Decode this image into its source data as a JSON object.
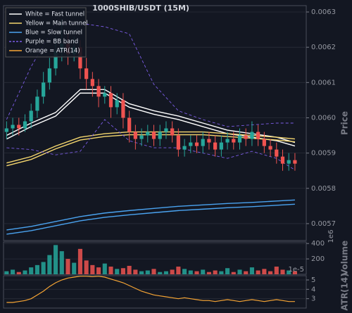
{
  "chart_data": [
    {
      "type": "candlestick",
      "title": "1000SHIB/USDT (15M)",
      "ylabel": "Price",
      "up_color": "#26a69a",
      "down_color": "#ef5350",
      "xlim": [
        -0.5,
        48.5
      ],
      "ylim": [
        0.005652,
        0.006318
      ],
      "yticks": [
        0.0057,
        0.0058,
        0.0059,
        {
          "value": 0.006,
          "label": "0.0060"
        },
        0.0061,
        0.0062,
        0.0063
      ],
      "x": [
        0,
        1,
        2,
        3,
        4,
        5,
        6,
        7,
        8,
        9,
        10,
        11,
        12,
        13,
        14,
        15,
        16,
        17,
        18,
        19,
        20,
        21,
        22,
        23,
        24,
        25,
        26,
        27,
        28,
        29,
        30,
        31,
        32,
        33,
        34,
        35,
        36,
        37,
        38,
        39,
        40,
        41,
        42,
        43,
        44,
        45,
        46,
        47
      ],
      "open": [
        0.00596,
        0.00597,
        0.00598,
        0.00597,
        0.00599,
        0.00602,
        0.00606,
        0.0061,
        0.00614,
        0.00619,
        0.00621,
        0.00618,
        0.0062,
        0.00614,
        0.00611,
        0.00609,
        0.00606,
        0.00607,
        0.00603,
        0.00605,
        0.006,
        0.00596,
        0.00594,
        0.00595,
        0.00596,
        0.00594,
        0.00596,
        0.00597,
        0.00595,
        0.00591,
        0.00592,
        0.00593,
        0.00592,
        0.00594,
        0.00593,
        0.00591,
        0.00593,
        0.00594,
        0.00593,
        0.00595,
        0.00594,
        0.00596,
        0.00594,
        0.00592,
        0.00591,
        0.00589,
        0.00587,
        0.00588
      ],
      "high": [
        0.00599,
        0.006,
        0.006,
        0.00601,
        0.00604,
        0.00608,
        0.00613,
        0.00617,
        0.00623,
        0.00628,
        0.00624,
        0.00623,
        0.00622,
        0.00617,
        0.00613,
        0.00611,
        0.00609,
        0.00609,
        0.00607,
        0.00607,
        0.00602,
        0.00598,
        0.00597,
        0.00598,
        0.00598,
        0.00598,
        0.00599,
        0.00599,
        0.00597,
        0.00594,
        0.00595,
        0.00595,
        0.00596,
        0.00596,
        0.00595,
        0.00595,
        0.00596,
        0.00596,
        0.00597,
        0.00597,
        0.00599,
        0.00598,
        0.00596,
        0.00594,
        0.00593,
        0.00591,
        0.0059,
        0.0059
      ],
      "low": [
        0.00594,
        0.00595,
        0.00595,
        0.00596,
        0.00597,
        0.006,
        0.00604,
        0.00608,
        0.00612,
        0.00616,
        0.00615,
        0.00616,
        0.00611,
        0.00608,
        0.00606,
        0.00603,
        0.00604,
        0.006,
        0.00601,
        0.00597,
        0.00593,
        0.00591,
        0.00592,
        0.00593,
        0.00592,
        0.00592,
        0.00594,
        0.00593,
        0.00589,
        0.00589,
        0.0059,
        0.0059,
        0.0059,
        0.00591,
        0.00589,
        0.00589,
        0.00591,
        0.00591,
        0.00591,
        0.00592,
        0.00592,
        0.00592,
        0.0059,
        0.00589,
        0.00587,
        0.00585,
        0.00585,
        0.00585
      ],
      "close": [
        0.00597,
        0.00598,
        0.00597,
        0.00599,
        0.00602,
        0.00606,
        0.0061,
        0.00614,
        0.00619,
        0.00621,
        0.00618,
        0.0062,
        0.00614,
        0.00611,
        0.00609,
        0.00606,
        0.00607,
        0.00603,
        0.00605,
        0.006,
        0.00596,
        0.00594,
        0.00595,
        0.00596,
        0.00594,
        0.00596,
        0.00597,
        0.00595,
        0.00591,
        0.00592,
        0.00593,
        0.00592,
        0.00594,
        0.00593,
        0.00591,
        0.00593,
        0.00594,
        0.00593,
        0.00595,
        0.00594,
        0.00596,
        0.00594,
        0.00592,
        0.00591,
        0.00589,
        0.00587,
        0.00588,
        0.00587
      ],
      "line_x": [
        0,
        4,
        8,
        12,
        16,
        20,
        24,
        28,
        32,
        36,
        40,
        44,
        47
      ],
      "bands": [
        {
          "name": "White = Fast tunnel",
          "color": "#ffffff",
          "dashed": false,
          "upper": [
            0.00595,
            0.005985,
            0.006015,
            0.00608,
            0.00608,
            0.00604,
            0.00602,
            0.006005,
            0.005985,
            0.005965,
            0.005955,
            0.005945,
            0.00593
          ],
          "lower": [
            0.00594,
            0.005975,
            0.006005,
            0.00607,
            0.00607,
            0.00603,
            0.00601,
            0.005995,
            0.005975,
            0.005955,
            0.005945,
            0.005935,
            0.00592
          ]
        },
        {
          "name": "Yellow = Main tunnel",
          "color": "#f5d76e",
          "dashed": false,
          "upper": [
            0.005872,
            0.00589,
            0.00592,
            0.005945,
            0.005955,
            0.00596,
            0.00596,
            0.00596,
            0.00596,
            0.005955,
            0.00595,
            0.005945,
            0.00594
          ],
          "lower": [
            0.005864,
            0.005882,
            0.005912,
            0.005937,
            0.005947,
            0.005952,
            0.005952,
            0.005952,
            0.005952,
            0.005947,
            0.005942,
            0.005937,
            0.005932
          ]
        },
        {
          "name": "Blue = Slow tunnel",
          "color": "#4aa3f0",
          "dashed": false,
          "upper": [
            0.005682,
            0.005692,
            0.005706,
            0.00572,
            0.00573,
            0.005737,
            0.005743,
            0.005749,
            0.005753,
            0.005757,
            0.00576,
            0.005764,
            0.005767
          ],
          "lower": [
            0.00567,
            0.00568,
            0.005694,
            0.005708,
            0.005718,
            0.005725,
            0.005731,
            0.005737,
            0.005741,
            0.005745,
            0.005748,
            0.005752,
            0.005755
          ]
        },
        {
          "name": "Purple = BB band",
          "color": "#7b5ce6",
          "dashed": true,
          "upper": [
            0.005995,
            0.006145,
            0.006265,
            0.006268,
            0.006258,
            0.006238,
            0.006095,
            0.00602,
            0.005995,
            0.005975,
            0.00598,
            0.005985,
            0.005985
          ],
          "lower": [
            0.005915,
            0.00591,
            0.005895,
            0.005905,
            0.005995,
            0.005935,
            0.005915,
            0.005915,
            0.0059,
            0.005885,
            0.005905,
            0.005885,
            0.005852
          ]
        }
      ]
    },
    {
      "type": "bar",
      "ylabel": "Volume",
      "offset_label": "1e6",
      "ylim": [
        0,
        420
      ],
      "yticks": [
        200,
        400
      ],
      "values": [
        40,
        60,
        30,
        50,
        90,
        120,
        160,
        250,
        380,
        300,
        200,
        150,
        330,
        180,
        120,
        90,
        140,
        100,
        70,
        80,
        110,
        60,
        40,
        50,
        70,
        30,
        40,
        60,
        100,
        70,
        50,
        40,
        60,
        30,
        50,
        40,
        80,
        30,
        60,
        40,
        90,
        50,
        70,
        40,
        100,
        60,
        50,
        40
      ]
    },
    {
      "type": "line",
      "name": "Orange = ATR(14)",
      "ylabel": "ATR(14)",
      "offset_label": "1e-5",
      "color": "#f7a534",
      "ylim": [
        2.0,
        5.45
      ],
      "yticks": [
        3,
        4,
        5
      ],
      "values": [
        2.6,
        2.6,
        2.7,
        2.8,
        3.0,
        3.4,
        3.8,
        4.3,
        4.7,
        5.0,
        5.2,
        5.3,
        5.4,
        5.4,
        5.35,
        5.4,
        5.3,
        5.1,
        4.9,
        4.7,
        4.4,
        4.1,
        3.8,
        3.6,
        3.4,
        3.3,
        3.2,
        3.1,
        3.0,
        3.1,
        3.0,
        2.9,
        2.8,
        2.8,
        2.7,
        2.8,
        2.9,
        2.8,
        2.7,
        2.8,
        2.9,
        2.8,
        2.7,
        2.8,
        2.9,
        2.8,
        2.7,
        2.7
      ]
    }
  ]
}
